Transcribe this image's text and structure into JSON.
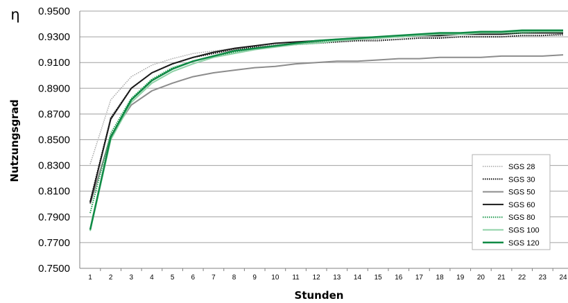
{
  "chart_data": {
    "type": "line",
    "title": "",
    "ylabel_symbol": "η",
    "ylabel": "Nutzungsgrad",
    "xlabel": "Stunden",
    "ylim": [
      0.75,
      0.95
    ],
    "y_ticks": [
      "0.7500",
      "0.7700",
      "0.7900",
      "0.8100",
      "0.8300",
      "0.8500",
      "0.8700",
      "0.8900",
      "0.9100",
      "0.9300",
      "0.9500"
    ],
    "x": [
      "1",
      "2",
      "3",
      "4",
      "5",
      "6",
      "7",
      "8",
      "9",
      "10",
      "11",
      "12",
      "13",
      "14",
      "15",
      "16",
      "17",
      "18",
      "19",
      "20",
      "21",
      "22",
      "23",
      "24"
    ],
    "grid": "horizontal",
    "legend_position": "right",
    "series": [
      {
        "name": "SGS 28",
        "color": "#a6a6a6",
        "style": "dotted",
        "width": 1.5,
        "values": [
          0.831,
          0.881,
          0.899,
          0.908,
          0.913,
          0.917,
          0.919,
          0.921,
          0.923,
          0.924,
          0.925,
          0.926,
          0.926,
          0.927,
          0.928,
          0.928,
          0.929,
          0.929,
          0.93,
          0.93,
          0.93,
          0.931,
          0.931,
          0.931
        ]
      },
      {
        "name": "SGS 30",
        "color": "#111111",
        "style": "dotted",
        "width": 2,
        "values": [
          0.802,
          0.867,
          0.89,
          0.902,
          0.909,
          0.914,
          0.917,
          0.92,
          0.922,
          0.923,
          0.924,
          0.925,
          0.926,
          0.927,
          0.927,
          0.928,
          0.929,
          0.929,
          0.93,
          0.93,
          0.93,
          0.931,
          0.931,
          0.932
        ]
      },
      {
        "name": "SGS 50",
        "color": "#8c8c8c",
        "style": "solid",
        "width": 2,
        "values": [
          0.8,
          0.853,
          0.877,
          0.888,
          0.894,
          0.899,
          0.902,
          0.904,
          0.906,
          0.907,
          0.909,
          0.91,
          0.911,
          0.911,
          0.912,
          0.913,
          0.913,
          0.914,
          0.914,
          0.914,
          0.915,
          0.915,
          0.915,
          0.916
        ]
      },
      {
        "name": "SGS 60",
        "color": "#1a1a1a",
        "style": "solid",
        "width": 2,
        "values": [
          0.801,
          0.866,
          0.89,
          0.902,
          0.909,
          0.914,
          0.918,
          0.921,
          0.923,
          0.925,
          0.926,
          0.927,
          0.928,
          0.929,
          0.93,
          0.93,
          0.931,
          0.931,
          0.932,
          0.932,
          0.932,
          0.933,
          0.933,
          0.933
        ]
      },
      {
        "name": "SGS 80",
        "color": "#1f9a4e",
        "style": "dotted",
        "width": 2,
        "values": [
          0.793,
          0.855,
          0.882,
          0.897,
          0.906,
          0.911,
          0.915,
          0.918,
          0.921,
          0.923,
          0.925,
          0.926,
          0.927,
          0.928,
          0.929,
          0.93,
          0.931,
          0.932,
          0.932,
          0.933,
          0.933,
          0.933,
          0.934,
          0.934
        ]
      },
      {
        "name": "SGS 100",
        "color": "#8ed1a6",
        "style": "solid",
        "width": 2,
        "values": [
          0.779,
          0.85,
          0.879,
          0.894,
          0.903,
          0.909,
          0.914,
          0.917,
          0.92,
          0.922,
          0.924,
          0.925,
          0.927,
          0.928,
          0.929,
          0.93,
          0.931,
          0.932,
          0.932,
          0.933,
          0.933,
          0.934,
          0.934,
          0.934
        ]
      },
      {
        "name": "SGS 120",
        "color": "#0f8a45",
        "style": "solid",
        "width": 2.5,
        "values": [
          0.78,
          0.852,
          0.881,
          0.896,
          0.905,
          0.911,
          0.915,
          0.919,
          0.921,
          0.923,
          0.925,
          0.927,
          0.928,
          0.929,
          0.93,
          0.931,
          0.932,
          0.933,
          0.933,
          0.934,
          0.934,
          0.935,
          0.935,
          0.935
        ]
      }
    ]
  }
}
